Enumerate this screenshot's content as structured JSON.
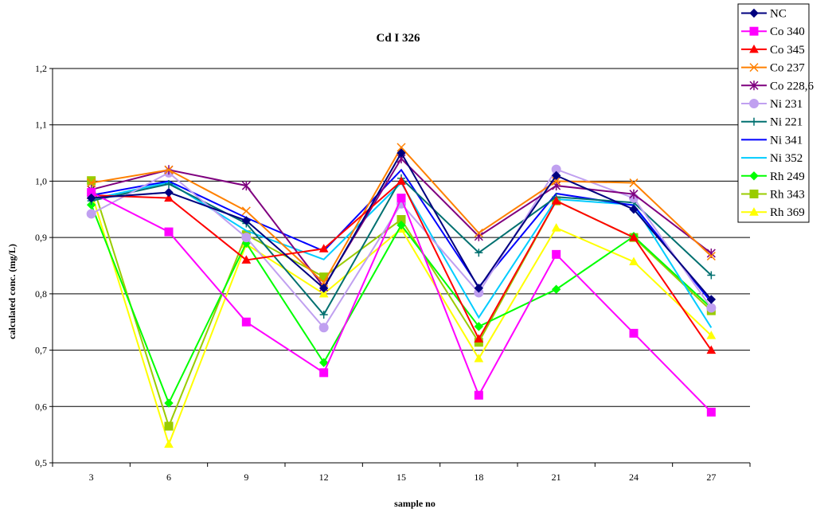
{
  "chart_data": {
    "type": "line",
    "title": "Cd I 326",
    "xlabel": "sample no",
    "ylabel": "calculated conc. (mg/L)",
    "categories": [
      "3",
      "6",
      "9",
      "12",
      "15",
      "18",
      "21",
      "24",
      "27"
    ],
    "y_ticks": [
      "0,5",
      "0,6",
      "0,7",
      "0,8",
      "0,9",
      "1,0",
      "1,1",
      "1,2"
    ],
    "ylim": [
      0.5,
      1.2
    ],
    "grid": "horizontal",
    "legend_position": "right",
    "series": [
      {
        "name": "NC",
        "color": "#00007f",
        "marker": "diamond",
        "values": [
          0.97,
          0.98,
          0.93,
          0.81,
          1.05,
          0.81,
          1.01,
          0.95,
          0.79
        ]
      },
      {
        "name": "Co 340",
        "color": "#ff00ff",
        "marker": "square",
        "values": [
          0.98,
          0.91,
          0.75,
          0.66,
          0.97,
          0.62,
          0.87,
          0.73,
          0.59
        ]
      },
      {
        "name": "Co 345",
        "color": "#ff0000",
        "marker": "triangle",
        "values": [
          0.975,
          0.97,
          0.86,
          0.88,
          1.0,
          0.72,
          0.965,
          0.9,
          0.7
        ]
      },
      {
        "name": "Co 237",
        "color": "#ff8000",
        "marker": "x",
        "values": [
          0.997,
          1.02,
          0.947,
          0.82,
          1.06,
          0.908,
          1.0,
          0.997,
          0.867
        ]
      },
      {
        "name": "Co 228,6",
        "color": "#7f007f",
        "marker": "star",
        "values": [
          0.985,
          1.02,
          0.992,
          0.812,
          1.04,
          0.902,
          0.992,
          0.977,
          0.872
        ]
      },
      {
        "name": "Ni 231",
        "color": "#c0a0f0",
        "marker": "circle",
        "values": [
          0.942,
          1.015,
          0.9,
          0.74,
          0.96,
          0.802,
          1.021,
          0.97,
          0.775
        ]
      },
      {
        "name": "Ni 221",
        "color": "#007070",
        "marker": "plus",
        "values": [
          0.965,
          0.995,
          0.925,
          0.763,
          1.005,
          0.873,
          0.972,
          0.962,
          0.833
        ]
      },
      {
        "name": "Ni 341",
        "color": "#0000ff",
        "marker": "line",
        "values": [
          0.975,
          1.0,
          0.935,
          0.876,
          1.02,
          0.812,
          0.978,
          0.957,
          0.785
        ]
      },
      {
        "name": "Ni 352",
        "color": "#00ccff",
        "marker": "line",
        "values": [
          0.968,
          0.998,
          0.912,
          0.861,
          0.997,
          0.758,
          0.968,
          0.958,
          0.74
        ]
      },
      {
        "name": "Rh 249",
        "color": "#00ff00",
        "marker": "diamond",
        "values": [
          0.958,
          0.606,
          0.89,
          0.678,
          0.922,
          0.742,
          0.808,
          0.902,
          0.775
        ]
      },
      {
        "name": "Rh 343",
        "color": "#99cc00",
        "marker": "square",
        "values": [
          1.001,
          0.565,
          0.905,
          0.83,
          0.932,
          0.714,
          0.965,
          0.9,
          0.77
        ]
      },
      {
        "name": "Rh 369",
        "color": "#ffff00",
        "marker": "triangle",
        "values": [
          0.98,
          0.533,
          0.888,
          0.8,
          0.915,
          0.685,
          0.917,
          0.857,
          0.726
        ]
      }
    ]
  }
}
